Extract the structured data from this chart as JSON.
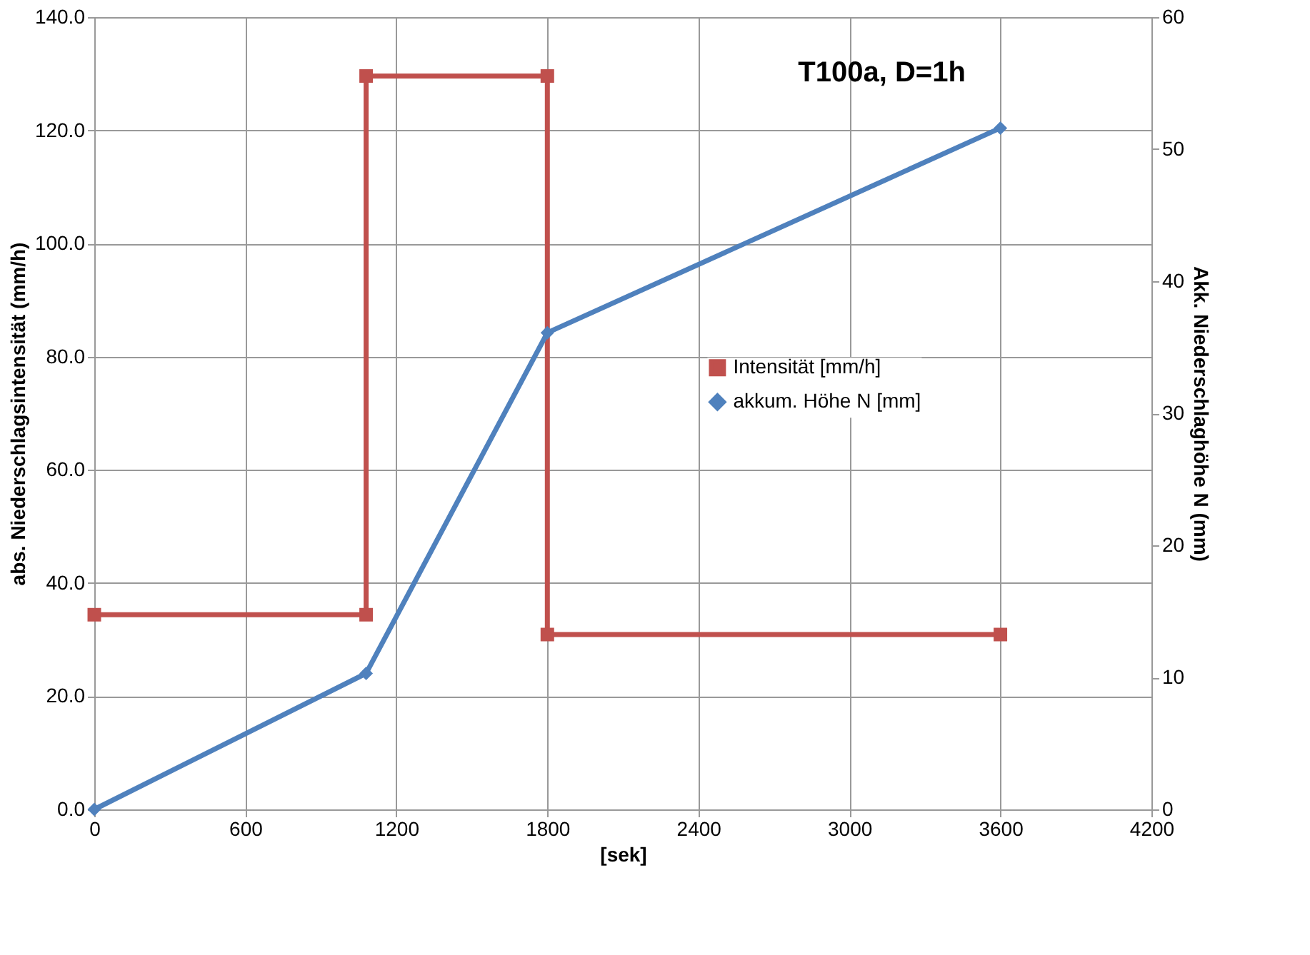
{
  "chart_data": {
    "type": "line",
    "title": "T100a, D=1h",
    "xlabel": "[sek]",
    "ylabel": "abs. Niederschlagsintensität (mm/h)",
    "y2label": "Akk. Niederschlaghöhe N (mm)",
    "series": [
      {
        "name": "Intensität [mm/h]",
        "color": "#c0504d",
        "marker": "square",
        "x": [
          0,
          1080,
          1080,
          1800,
          1800,
          3600
        ],
        "values": [
          34.4,
          34.4,
          129.6,
          129.6,
          30.9,
          30.9
        ]
      },
      {
        "name": "akkum. Höhe N [mm]",
        "color": "#4f81bd",
        "marker": "diamond",
        "axis": "y2",
        "x": [
          0,
          1080,
          1800,
          3600
        ],
        "values": [
          0,
          10.3,
          36.1,
          51.6
        ]
      }
    ],
    "xlim": [
      0,
      4200
    ],
    "xticks": [
      0,
      600,
      1200,
      1800,
      2400,
      3000,
      3600,
      4200
    ],
    "ylim": [
      0,
      140
    ],
    "yticks": [
      {
        "value": 0,
        "label": "0.0"
      },
      {
        "value": 20,
        "label": "20.0"
      },
      {
        "value": 40,
        "label": "40.0"
      },
      {
        "value": 60,
        "label": "60.0"
      },
      {
        "value": 80,
        "label": "80.0"
      },
      {
        "value": 100,
        "label": "100.0"
      },
      {
        "value": 120,
        "label": "120.0"
      },
      {
        "value": 140,
        "label": "140.0"
      }
    ],
    "y2lim": [
      0,
      60
    ],
    "y2ticks": [
      0,
      10,
      20,
      30,
      40,
      50,
      60
    ],
    "grid": true,
    "legend": "right",
    "line_style": "solid"
  }
}
